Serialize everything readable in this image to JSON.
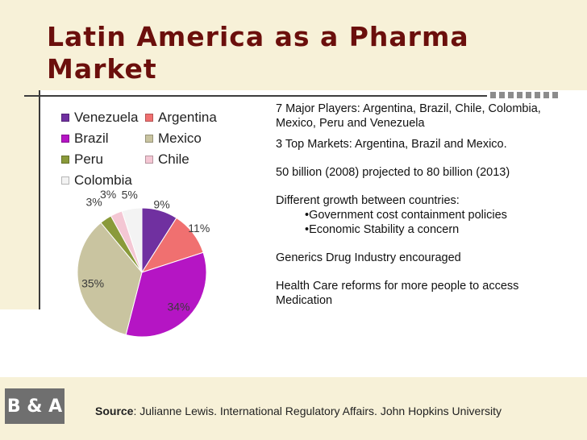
{
  "title": "Latin America as a Pharma Market",
  "logo_text": "B & A",
  "chart_data": {
    "type": "pie",
    "legend": [
      "Venezuela",
      "Argentina",
      "Brazil",
      "Mexico",
      "Peru",
      "Chile",
      "Colombia"
    ],
    "categories": [
      "Venezuela",
      "Argentina",
      "Brazil",
      "Mexico",
      "Peru",
      "Chile",
      "Colombia"
    ],
    "values": [
      9,
      11,
      34,
      35,
      3,
      3,
      5
    ],
    "labels": [
      "9%",
      "11%",
      "34%",
      "35%",
      "3%",
      "3%",
      "5%"
    ],
    "colors": [
      "#7030a0",
      "#f07070",
      "#b515c4",
      "#c9c4a0",
      "#8a9a3a",
      "#f4c7d4",
      "#f3f3f3"
    ],
    "legend_position": "top"
  },
  "notes": {
    "players": "7 Major Players: Argentina, Brazil, Chile, Colombia, Mexico, Peru and Venezuela",
    "markets": "3 Top Markets: Argentina, Brazil and Mexico.",
    "size": "50 billion (2008) projected to 80 billion (2013)",
    "growth": "Different growth between countries:",
    "growth_items": [
      "•Government cost containment policies",
      "•Economic Stability a concern"
    ],
    "generics": "Generics Drug Industry encouraged",
    "reform": "Health Care reforms for more people to access Medication"
  },
  "source": {
    "label": "Source",
    "text": ":  Julianne Lewis. International Regulatory Affairs. John Hopkins University"
  }
}
